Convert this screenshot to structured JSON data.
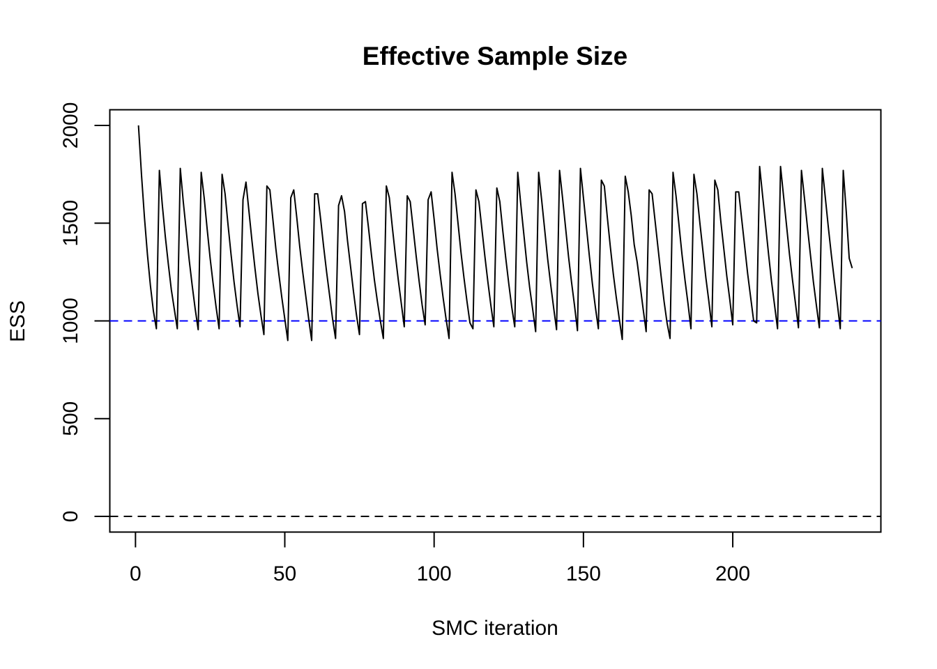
{
  "chart_data": {
    "type": "line",
    "title": "Effective Sample Size",
    "xlabel": "SMC iteration",
    "ylabel": "ESS",
    "xlim": [
      -8.6,
      249.6
    ],
    "ylim": [
      -80,
      2080
    ],
    "xticks": [
      0,
      50,
      100,
      150,
      200
    ],
    "yticks": [
      0,
      500,
      1000,
      1500,
      2000
    ],
    "xtick_labels": [
      "0",
      "50",
      "100",
      "150",
      "200"
    ],
    "ytick_labels": [
      "0",
      "500",
      "1000",
      "1500",
      "2000"
    ],
    "grid": false,
    "series": [
      {
        "color": "#000000",
        "x": [
          1,
          2,
          3,
          4,
          5,
          6,
          7,
          8,
          9,
          10,
          11,
          12,
          13,
          14,
          15,
          16,
          17,
          18,
          19,
          20,
          21,
          22,
          23,
          24,
          25,
          26,
          27,
          28,
          29,
          30,
          31,
          32,
          33,
          34,
          35,
          36,
          37,
          38,
          39,
          40,
          41,
          42,
          43,
          44,
          45,
          46,
          47,
          48,
          49,
          50,
          51,
          52,
          53,
          54,
          55,
          56,
          57,
          58,
          59,
          60,
          61,
          62,
          63,
          64,
          65,
          66,
          67,
          68,
          69,
          70,
          71,
          72,
          73,
          74,
          75,
          76,
          77,
          78,
          79,
          80,
          81,
          82,
          83,
          84,
          85,
          86,
          87,
          88,
          89,
          90,
          91,
          92,
          93,
          94,
          95,
          96,
          97,
          98,
          99,
          100,
          101,
          102,
          103,
          104,
          105,
          106,
          107,
          108,
          109,
          110,
          111,
          112,
          113,
          114,
          115,
          116,
          117,
          118,
          119,
          120,
          121,
          122,
          123,
          124,
          125,
          126,
          127,
          128,
          129,
          130,
          131,
          132,
          133,
          134,
          135,
          136,
          137,
          138,
          139,
          140,
          141,
          142,
          143,
          144,
          145,
          146,
          147,
          148,
          149,
          150,
          151,
          152,
          153,
          154,
          155,
          156,
          157,
          158,
          159,
          160,
          161,
          162,
          163,
          164,
          165,
          166,
          167,
          168,
          169,
          170,
          171,
          172,
          173,
          174,
          175,
          176,
          177,
          178,
          179,
          180,
          181,
          182,
          183,
          184,
          185,
          186,
          187,
          188,
          189,
          190,
          191,
          192,
          193,
          194,
          195,
          196,
          197,
          198,
          199,
          200,
          201,
          202,
          203,
          204,
          205,
          206,
          207,
          208,
          209,
          210,
          211,
          212,
          213,
          214,
          215,
          216,
          217,
          218,
          219,
          220,
          221,
          222,
          223,
          224,
          225,
          226,
          227,
          228,
          229,
          230,
          231,
          232,
          233,
          234,
          235,
          236,
          237,
          238,
          239,
          240
        ],
        "y": [
          2000,
          1750,
          1530,
          1340,
          1180,
          1050,
          960,
          1770,
          1590,
          1430,
          1290,
          1160,
          1060,
          960,
          1780,
          1610,
          1460,
          1310,
          1180,
          1060,
          955,
          1760,
          1630,
          1470,
          1320,
          1190,
          1070,
          960,
          1750,
          1650,
          1490,
          1340,
          1200,
          1080,
          970,
          1620,
          1710,
          1560,
          1410,
          1270,
          1140,
          1030,
          930,
          1690,
          1670,
          1520,
          1370,
          1240,
          1120,
          1010,
          900,
          1630,
          1670,
          1530,
          1380,
          1250,
          1130,
          1010,
          900,
          1650,
          1650,
          1520,
          1380,
          1250,
          1130,
          1010,
          910,
          1590,
          1640,
          1560,
          1410,
          1280,
          1150,
          1030,
          930,
          1600,
          1610,
          1480,
          1340,
          1210,
          1100,
          1000,
          910,
          1690,
          1630,
          1480,
          1340,
          1210,
          1090,
          970,
          1640,
          1610,
          1470,
          1330,
          1200,
          1080,
          980,
          1620,
          1660,
          1520,
          1370,
          1240,
          1120,
          1010,
          910,
          1760,
          1650,
          1500,
          1350,
          1220,
          1100,
          990,
          960,
          1670,
          1610,
          1470,
          1330,
          1200,
          1080,
          970,
          1680,
          1610,
          1460,
          1320,
          1190,
          1070,
          970,
          1760,
          1600,
          1450,
          1300,
          1170,
          1060,
          945,
          1760,
          1620,
          1470,
          1320,
          1190,
          1070,
          955,
          1770,
          1630,
          1480,
          1330,
          1200,
          1080,
          950,
          1780,
          1630,
          1480,
          1330,
          1190,
          1070,
          960,
          1720,
          1690,
          1530,
          1380,
          1240,
          1120,
          1010,
          905,
          1740,
          1660,
          1540,
          1390,
          1300,
          1180,
          1060,
          945,
          1670,
          1650,
          1510,
          1370,
          1230,
          1100,
          990,
          910,
          1760,
          1640,
          1490,
          1340,
          1210,
          1090,
          960,
          1750,
          1650,
          1500,
          1360,
          1220,
          1100,
          970,
          1720,
          1670,
          1510,
          1370,
          1230,
          1110,
          980,
          1660,
          1660,
          1520,
          1380,
          1240,
          1120,
          1000,
          990,
          1790,
          1640,
          1490,
          1340,
          1200,
          1080,
          960,
          1790,
          1640,
          1490,
          1340,
          1210,
          1090,
          965,
          1770,
          1630,
          1480,
          1340,
          1200,
          1080,
          965,
          1780,
          1630,
          1480,
          1340,
          1210,
          1090,
          960,
          1770,
          1560,
          1320,
          1270
        ]
      },
      {
        "name": "",
        "type": "hline",
        "y": 1000,
        "color": "#0000ff",
        "dash": "dashed"
      },
      {
        "name": "",
        "type": "hline",
        "y": 0,
        "color": "#000000",
        "dash": "dashed"
      }
    ]
  }
}
